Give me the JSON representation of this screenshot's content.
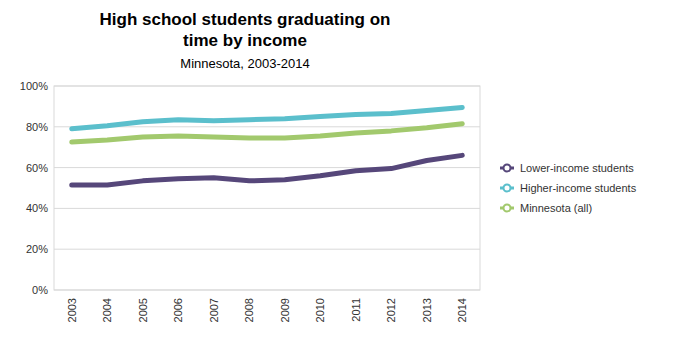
{
  "chart_data": {
    "type": "line",
    "title": "High school students graduating on time by income",
    "subtitle": "Minnesota, 2003-2014",
    "categories": [
      "2003",
      "2004",
      "2005",
      "2006",
      "2007",
      "2008",
      "2009",
      "2010",
      "2011",
      "2012",
      "2013",
      "2014"
    ],
    "series": [
      {
        "name": "Lower-income students",
        "color": "#56477a",
        "marker": "circle",
        "values": [
          51.5,
          51.5,
          53.5,
          54.5,
          55,
          53.5,
          54,
          56,
          58.5,
          59.5,
          63.5,
          66
        ]
      },
      {
        "name": "Higher-income students",
        "color": "#5bbfcc",
        "marker": "circle",
        "values": [
          79,
          80.5,
          82.5,
          83.5,
          83,
          83.5,
          84,
          85,
          86,
          86.5,
          88,
          89.5
        ]
      },
      {
        "name": "Minnesota (all)",
        "color": "#a2c96d",
        "marker": "circle",
        "values": [
          72.5,
          73.5,
          75,
          75.5,
          75,
          74.5,
          74.5,
          75.5,
          77,
          78,
          79.5,
          81.5
        ]
      }
    ],
    "ylim": [
      0,
      100
    ],
    "yticks": [
      {
        "value": 0,
        "label": "0%"
      },
      {
        "value": 20,
        "label": "20%"
      },
      {
        "value": 40,
        "label": "40%"
      },
      {
        "value": 60,
        "label": "60%"
      },
      {
        "value": 80,
        "label": "80%"
      },
      {
        "value": 100,
        "label": "100%"
      }
    ],
    "grid": true,
    "legend": "right"
  }
}
